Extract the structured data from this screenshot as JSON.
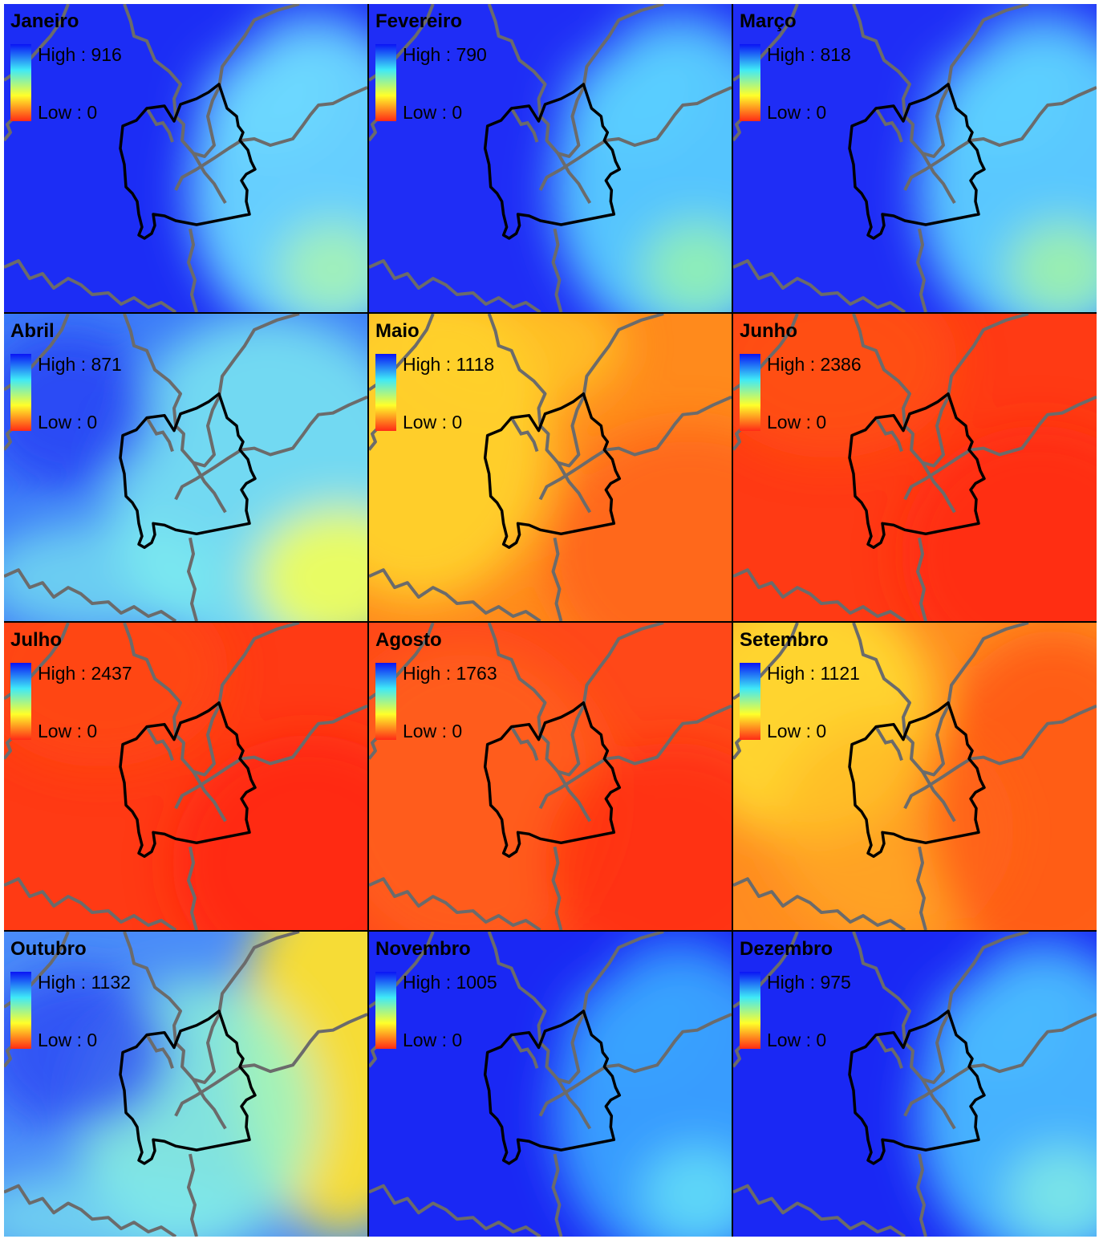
{
  "legend_colors": [
    "#0a14f5",
    "#3fe9f7",
    "#ffff2a",
    "#ff2a16"
  ],
  "panels": [
    {
      "month": "Janeiro",
      "high": "High : 916",
      "low": "Low : 0",
      "palette": "blue",
      "colors": {
        "base": "#1c2df5",
        "a": "#6fe0ff",
        "b": "#b9ff9e"
      }
    },
    {
      "month": "Fevereiro",
      "high": "High : 790",
      "low": "Low : 0",
      "palette": "blue",
      "colors": {
        "base": "#1f2df6",
        "a": "#5bd5ff",
        "b": "#a6ff9a"
      }
    },
    {
      "month": "Março",
      "high": "High : 818",
      "low": "Low : 0",
      "palette": "blue",
      "colors": {
        "base": "#1f2df6",
        "a": "#60d8ff",
        "b": "#b5ff8e"
      }
    },
    {
      "month": "Abril",
      "high": "High : 871",
      "low": "Low : 0",
      "palette": "blue2",
      "colors": {
        "base": "#3c7bf8",
        "a": "#7ff0f0",
        "b": "#f5ff55"
      }
    },
    {
      "month": "Maio",
      "high": "High : 1118",
      "low": "Low : 0",
      "palette": "orange",
      "colors": {
        "base": "#ff8a1c",
        "a": "#ffd22a",
        "b": "#ff5a1a"
      }
    },
    {
      "month": "Junho",
      "high": "High : 2386",
      "low": "Low : 0",
      "palette": "red",
      "colors": {
        "base": "#ff3a14",
        "a": "#ff5a18",
        "b": "#ff2a10"
      }
    },
    {
      "month": "Julho",
      "high": "High : 2437",
      "low": "Low : 0",
      "palette": "red",
      "colors": {
        "base": "#ff3a14",
        "a": "#ff4e16",
        "b": "#ff2410"
      }
    },
    {
      "month": "Agosto",
      "high": "High : 1763",
      "low": "Low : 0",
      "palette": "red2",
      "colors": {
        "base": "#ff4818",
        "a": "#ff6a1c",
        "b": "#ff2a10"
      }
    },
    {
      "month": "Setembro",
      "high": "High : 1121",
      "low": "Low : 0",
      "palette": "orange2",
      "colors": {
        "base": "#ff8c20",
        "a": "#ffd830",
        "b": "#ff4a16"
      }
    },
    {
      "month": "Outubro",
      "high": "High : 1132",
      "low": "Low : 0",
      "palette": "mixed",
      "colors": {
        "base": "#4a8cf8",
        "a": "#8ef7d8",
        "b": "#ffe02a"
      }
    },
    {
      "month": "Novembro",
      "high": "High : 1005",
      "low": "Low : 0",
      "palette": "blue",
      "colors": {
        "base": "#1a28f4",
        "a": "#3aa8ff",
        "b": "#6ff0f5"
      }
    },
    {
      "month": "Dezembro",
      "high": "High : 975",
      "low": "Low : 0",
      "palette": "blue",
      "colors": {
        "base": "#1a28f4",
        "a": "#4bc0ff",
        "b": "#8ff8e0"
      }
    }
  ]
}
